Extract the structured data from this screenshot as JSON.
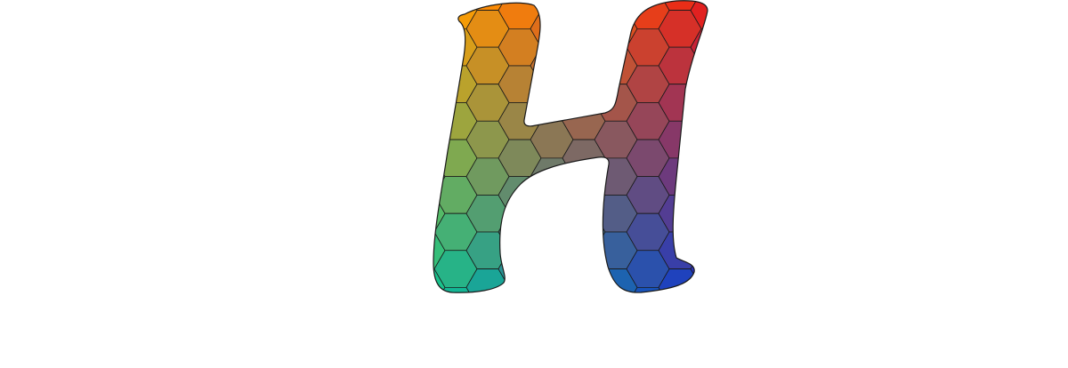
{
  "artwork": {
    "subject": "letter-h-logo",
    "letter": "H",
    "background_color": "#ffffff",
    "outline_color": "#1a1a1a",
    "gradient_corners": {
      "top_left": "#ffa500",
      "top_right": "#e8201a",
      "bottom_left": "#12c28f",
      "bottom_right": "#1a33c8"
    }
  }
}
